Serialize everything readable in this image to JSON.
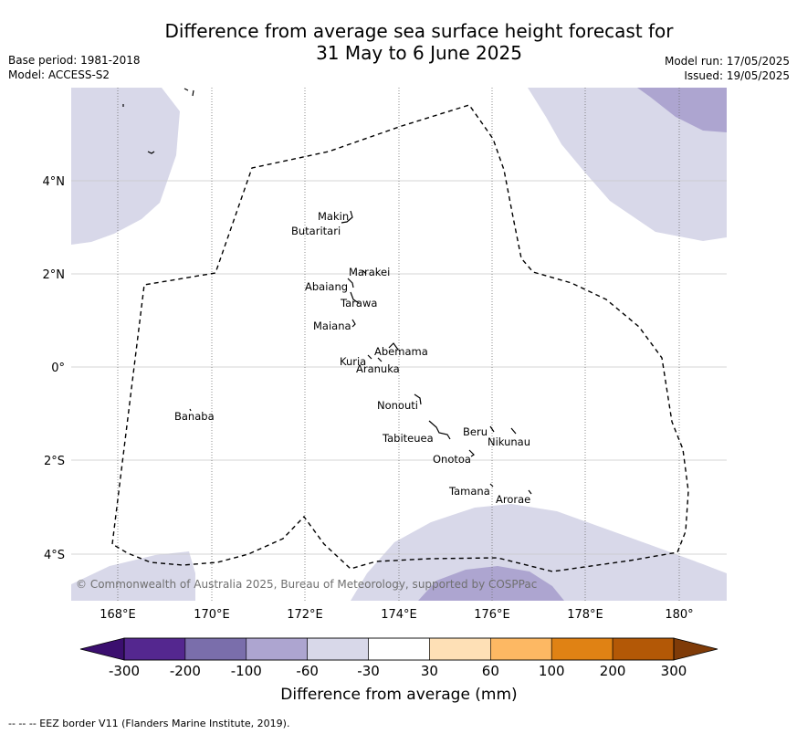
{
  "title": {
    "line1": "Difference from average sea surface height forecast for",
    "line2": "31 May to 6 June 2025"
  },
  "meta": {
    "base_period": "Base period: 1981-2018",
    "model": "Model: ACCESS-S2",
    "model_run": "Model run: 17/05/2025",
    "issued": "Issued: 19/05/2025"
  },
  "axes": {
    "x_ticks": [
      "168°E",
      "170°E",
      "172°E",
      "174°E",
      "176°E",
      "178°E",
      "180°"
    ],
    "y_ticks": [
      "4°N",
      "2°N",
      "0°",
      "2°S",
      "4°S"
    ]
  },
  "places": [
    {
      "name": "Makin"
    },
    {
      "name": "Butaritari"
    },
    {
      "name": "Marakei"
    },
    {
      "name": "Abaiang"
    },
    {
      "name": "Tarawa"
    },
    {
      "name": "Maiana"
    },
    {
      "name": "Abemama"
    },
    {
      "name": "Kuria"
    },
    {
      "name": "Aranuka"
    },
    {
      "name": "Nonouti"
    },
    {
      "name": "Banaba"
    },
    {
      "name": "Beru"
    },
    {
      "name": "Tabiteuea"
    },
    {
      "name": "Nikunau"
    },
    {
      "name": "Onotoa"
    },
    {
      "name": "Tamana"
    },
    {
      "name": "Arorae"
    }
  ],
  "copyright": "© Commonwealth of Australia 2025, Bureau of Meteorology, supported by COSPPac",
  "colorbar": {
    "title": "Difference from average (mm)",
    "ticks": [
      "-300",
      "-200",
      "-100",
      "-60",
      "-30",
      "30",
      "60",
      "100",
      "200",
      "300"
    ],
    "colors": [
      "#3b0f6f",
      "#54278f",
      "#7a6eab",
      "#ada5d0",
      "#d8d8e9",
      "#ffffff",
      "#fee0b6",
      "#fdb863",
      "#e08214",
      "#b35806",
      "#7f3b08"
    ]
  },
  "footnote": "--  --  -- EEZ border V11 (Flanders Marine Institute, 2019)."
}
